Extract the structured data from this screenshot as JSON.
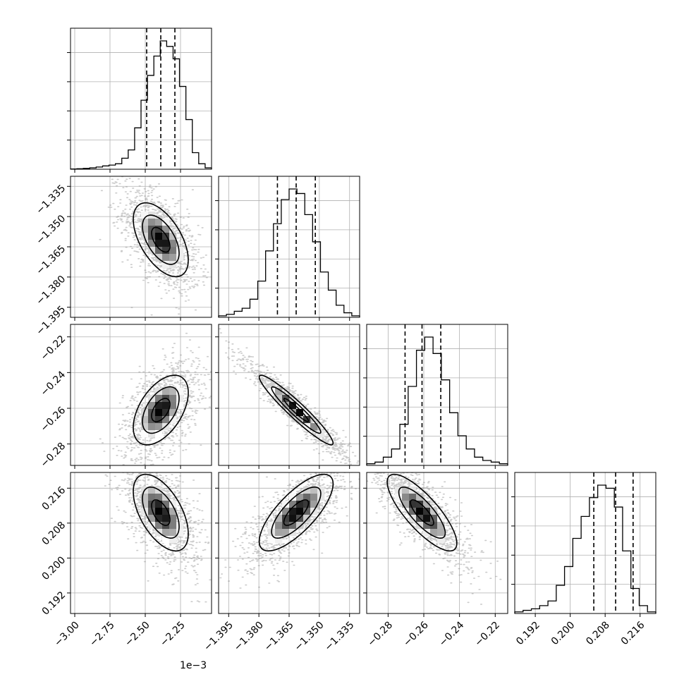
{
  "chart_data": {
    "type": "corner",
    "parameters": [
      {
        "range": [
          -3.03,
          -2.03
        ],
        "ticks": [
          -3.0,
          -2.75,
          -2.5,
          -2.25
        ],
        "tick_labels": [
          "−3.00",
          "−2.75",
          "−2.50",
          "−2.25"
        ],
        "offset_label": "1e−3",
        "hist_bins": [
          0.2,
          0.4,
          0.6,
          1,
          1.6,
          2.4,
          3,
          4,
          8,
          14,
          30,
          50,
          68,
          82,
          93,
          89,
          80,
          60,
          36,
          12,
          4,
          1
        ],
        "quantiles": [
          -2.49,
          -2.39,
          -2.29
        ],
        "median": -2.39
      },
      {
        "range": [
          -1.4,
          -1.33
        ],
        "ticks": [
          -1.395,
          -1.38,
          -1.365,
          -1.35,
          -1.335
        ],
        "tick_labels": [
          "−1.395",
          "−1.380",
          "−1.365",
          "−1.350",
          "−1.335"
        ],
        "offset_label": "",
        "hist_bins": [
          1,
          2,
          4,
          6,
          12,
          24,
          44,
          62,
          78,
          85,
          82,
          68,
          50,
          30,
          18,
          8,
          3,
          1
        ],
        "quantiles": [
          -1.3708,
          -1.3615,
          -1.352
        ],
        "median": -1.3615
      },
      {
        "range": [
          -0.292,
          -0.213
        ],
        "ticks": [
          -0.28,
          -0.26,
          -0.24,
          -0.22
        ],
        "tick_labels": [
          "−0.28",
          "−0.26",
          "−0.24",
          "−0.22"
        ],
        "offset_label": "",
        "hist_bins": [
          1,
          2,
          5,
          10,
          25,
          48,
          70,
          78,
          68,
          52,
          32,
          18,
          10,
          5,
          3,
          2,
          1
        ],
        "quantiles": [
          -0.2705,
          -0.261,
          -0.2505
        ],
        "median": -0.261
      },
      {
        "range": [
          0.1873,
          0.2196
        ],
        "ticks": [
          0.192,
          0.2,
          0.208,
          0.216
        ],
        "tick_labels": [
          "0.192",
          "0.200",
          "0.208",
          "0.216"
        ],
        "offset_label": "",
        "hist_bins": [
          1,
          2,
          3,
          5,
          8,
          18,
          30,
          48,
          62,
          74,
          82,
          80,
          68,
          40,
          16,
          5,
          1
        ],
        "quantiles": [
          0.2054,
          0.2104,
          0.2144
        ],
        "median": 0.2104
      }
    ],
    "pairs": [
      {
        "row": 1,
        "col": 0,
        "rho": -0.55
      },
      {
        "row": 2,
        "col": 0,
        "rho": 0.5
      },
      {
        "row": 2,
        "col": 1,
        "rho": -0.95
      },
      {
        "row": 3,
        "col": 0,
        "rho": -0.55
      },
      {
        "row": 3,
        "col": 1,
        "rho": 0.75
      },
      {
        "row": 3,
        "col": 2,
        "rho": -0.8
      }
    ],
    "grid": true,
    "contour_levels": [
      0.5,
      1.0,
      1.5
    ]
  }
}
